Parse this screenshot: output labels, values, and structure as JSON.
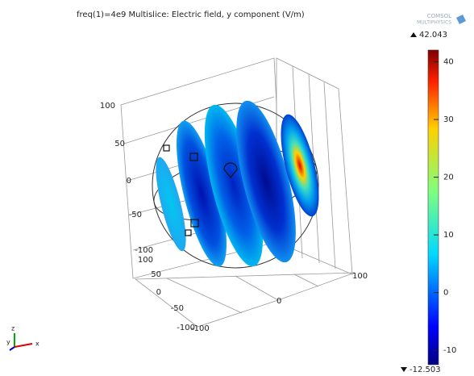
{
  "title": "freq(1)=4e9   Multislice: Electric field, y component (V/m)",
  "logo": {
    "line1": "COMSOL",
    "line2": "MULTIPHYSICS"
  },
  "colorbar": {
    "max": 42.043,
    "min": -12.503,
    "ticks": [
      40,
      30,
      20,
      10,
      0,
      -10
    ]
  },
  "axes": {
    "z_ticks": [
      "100",
      "50",
      "0",
      "-50",
      "-100"
    ],
    "y_ticks": [
      "100",
      "50",
      "0",
      "-50",
      "-100"
    ],
    "x_ticks": [
      "100",
      "0",
      "-100"
    ]
  },
  "triad": {
    "z": "z",
    "y": "y",
    "x": "x"
  }
}
